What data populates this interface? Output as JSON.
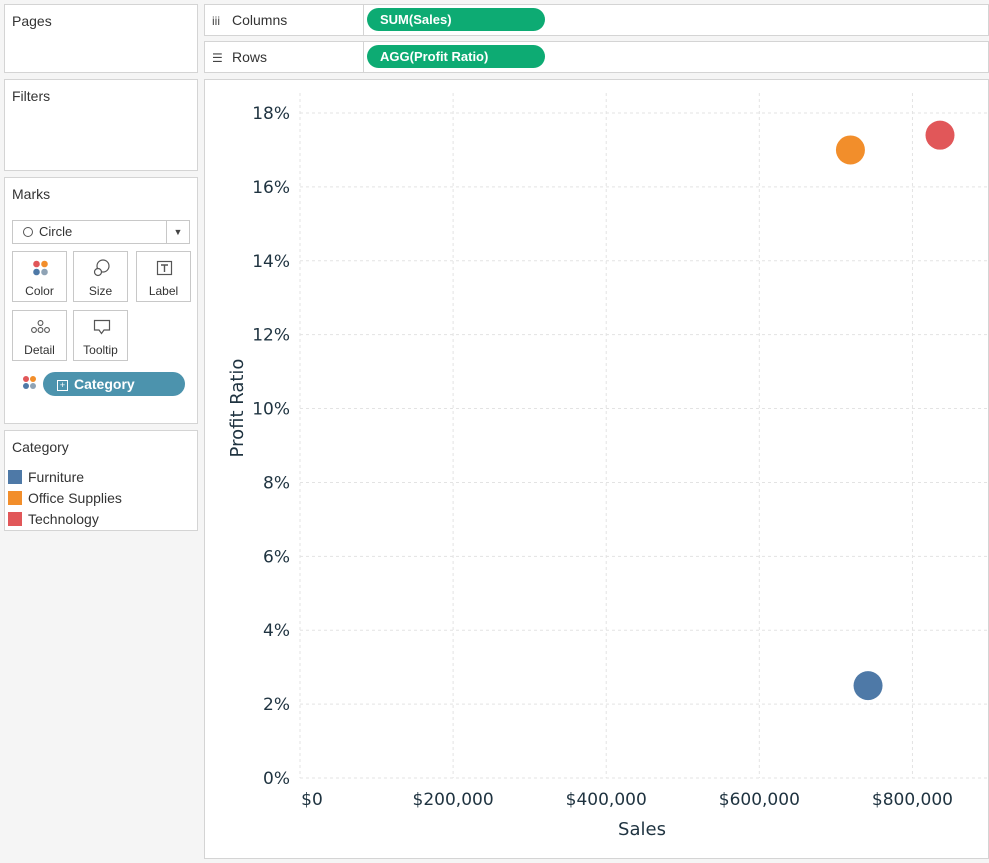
{
  "cards": {
    "pages": "Pages",
    "filters": "Filters",
    "marks": "Marks"
  },
  "shelves": {
    "columns_label": "Columns",
    "columns_pill": "SUM(Sales)",
    "rows_label": "Rows",
    "rows_pill": "AGG(Profit Ratio)"
  },
  "marks": {
    "type": "Circle",
    "buttons": [
      "Color",
      "Size",
      "Label",
      "Detail",
      "Tooltip"
    ],
    "color_field": "Category"
  },
  "legend": {
    "title": "Category",
    "items": [
      {
        "label": "Furniture",
        "color": "#4e79a7"
      },
      {
        "label": "Office Supplies",
        "color": "#f28e2b"
      },
      {
        "label": "Technology",
        "color": "#e15759"
      }
    ]
  },
  "chart_data": {
    "type": "scatter",
    "xlabel": "Sales",
    "ylabel": "Profit Ratio",
    "xlim": [
      0,
      900000
    ],
    "ylim": [
      0,
      0.18
    ],
    "x_ticks": [
      0,
      200000,
      400000,
      600000,
      800000
    ],
    "x_tick_labels": [
      "$0",
      "$200,000",
      "$400,000",
      "$600,000",
      "$800,000"
    ],
    "y_ticks": [
      0,
      0.02,
      0.04,
      0.06,
      0.08,
      0.1,
      0.12,
      0.14,
      0.16,
      0.18
    ],
    "y_tick_labels": [
      "0%",
      "2%",
      "4%",
      "6%",
      "8%",
      "10%",
      "12%",
      "14%",
      "16%",
      "18%"
    ],
    "grid": true,
    "points": [
      {
        "category": "Furniture",
        "x": 742000,
        "y": 0.025,
        "color": "#4e79a7"
      },
      {
        "category": "Office Supplies",
        "x": 719000,
        "y": 0.17,
        "color": "#f28e2b"
      },
      {
        "category": "Technology",
        "x": 836000,
        "y": 0.174,
        "color": "#e15759"
      }
    ]
  }
}
